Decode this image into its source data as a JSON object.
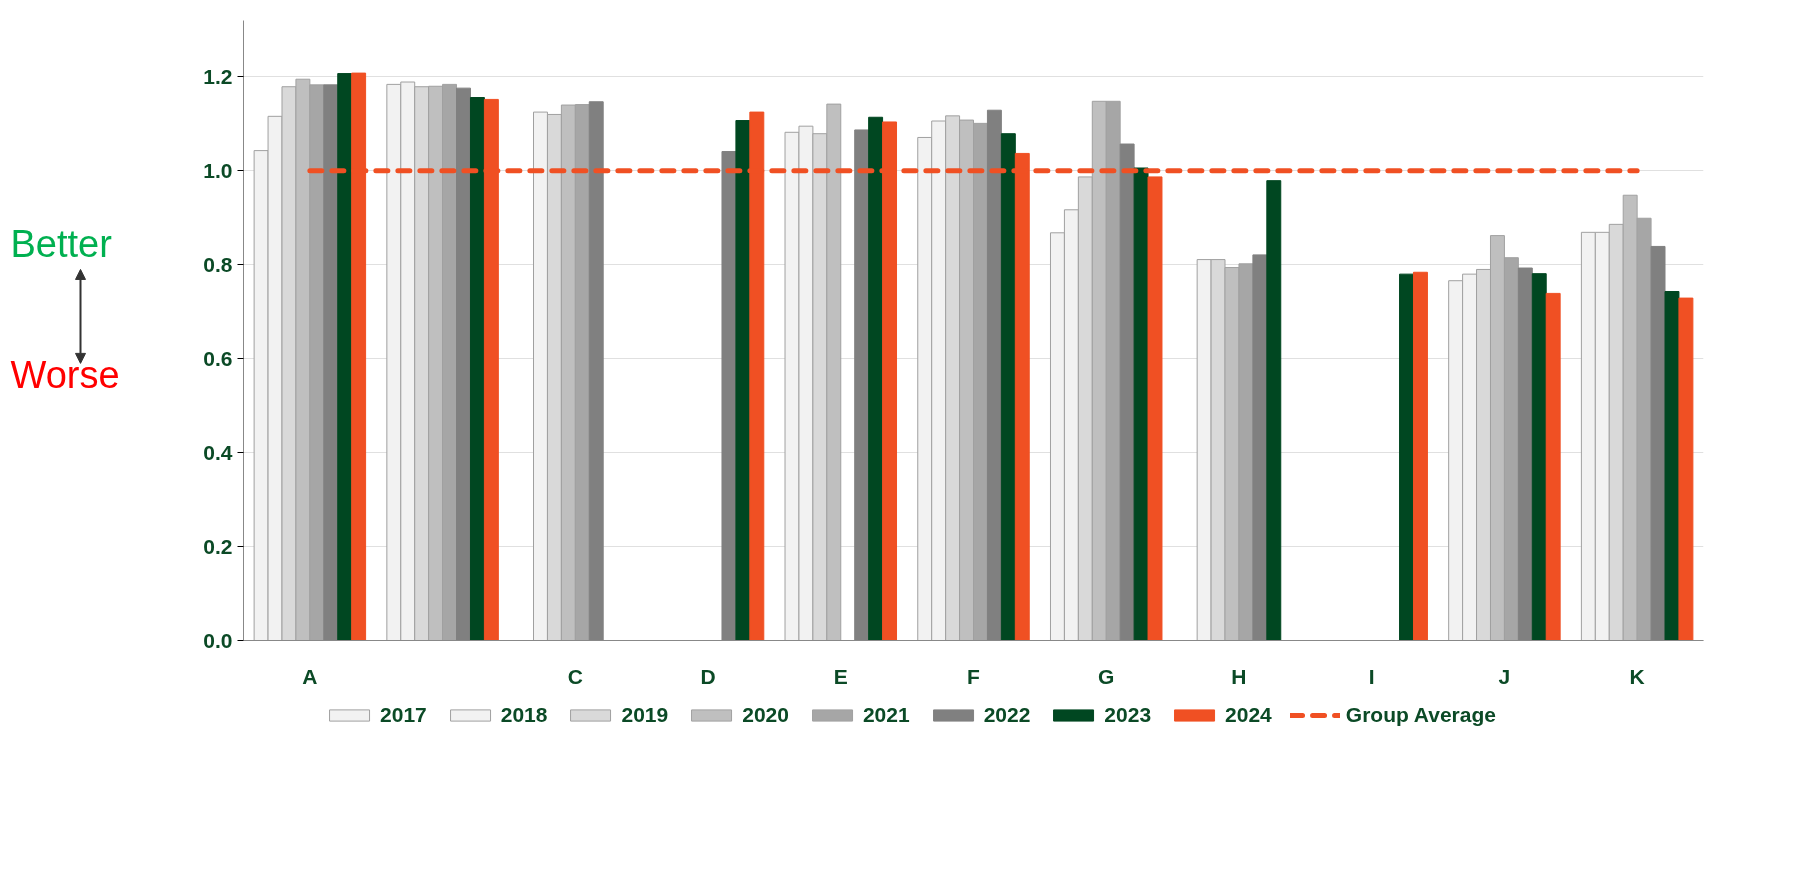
{
  "chart_data": {
    "type": "bar",
    "categories": [
      "A",
      null,
      "C",
      "D",
      "E",
      "F",
      "G",
      "H",
      "I",
      "J",
      "K"
    ],
    "ylim": [
      0,
      1.32
    ],
    "yticks": [
      {
        "value": 0,
        "label": "0.0"
      },
      0.2,
      0.4,
      0.6,
      0.8,
      {
        "value": 1,
        "label": "1.0"
      },
      1.2
    ],
    "grid": "y",
    "legend": "bottom",
    "series": [
      {
        "name": "2017",
        "color": "#f2f2f2",
        "values": [
          1.043,
          1.184,
          null,
          null,
          1.082,
          1.071,
          0.868,
          null,
          null,
          0.766,
          0.869
        ]
      },
      {
        "name": "2018",
        "color": "#f2f2f2",
        "values": [
          1.116,
          1.189,
          1.125,
          null,
          1.095,
          1.106,
          0.917,
          0.811,
          null,
          0.78,
          0.869
        ]
      },
      {
        "name": "2019",
        "color": "#d9d9d9",
        "values": [
          1.179,
          1.179,
          1.12,
          null,
          1.079,
          1.117,
          0.987,
          0.811,
          null,
          0.79,
          0.886
        ]
      },
      {
        "name": "2020",
        "color": "#bfbfbf",
        "values": [
          1.195,
          1.18,
          1.14,
          null,
          1.142,
          1.108,
          1.148,
          0.794,
          null,
          0.862,
          0.948
        ]
      },
      {
        "name": "2021",
        "color": "#a6a6a6",
        "values": [
          1.183,
          1.184,
          1.141,
          null,
          null,
          1.101,
          1.148,
          0.802,
          null,
          0.815,
          0.899
        ]
      },
      {
        "name": "2022",
        "color": "#808080",
        "values": [
          1.183,
          1.176,
          1.147,
          1.041,
          1.087,
          1.129,
          1.057,
          0.821,
          null,
          0.793,
          0.839
        ]
      },
      {
        "name": "2023",
        "color": "#004721",
        "values": [
          1.207,
          1.156,
          null,
          1.107,
          1.114,
          1.079,
          1.006,
          0.979,
          0.78,
          0.781,
          0.743
        ]
      },
      {
        "name": "2024",
        "color": "#f05023",
        "values": [
          1.208,
          1.152,
          null,
          1.125,
          1.104,
          1.037,
          0.987,
          null,
          0.784,
          0.739,
          0.729
        ]
      }
    ],
    "ref_lines": [
      {
        "axis": "y",
        "value": 1.0,
        "label": "Group Average",
        "color": "#f05023",
        "line_style": "dashed"
      }
    ],
    "annotations": [
      "Better",
      "Worse"
    ]
  }
}
